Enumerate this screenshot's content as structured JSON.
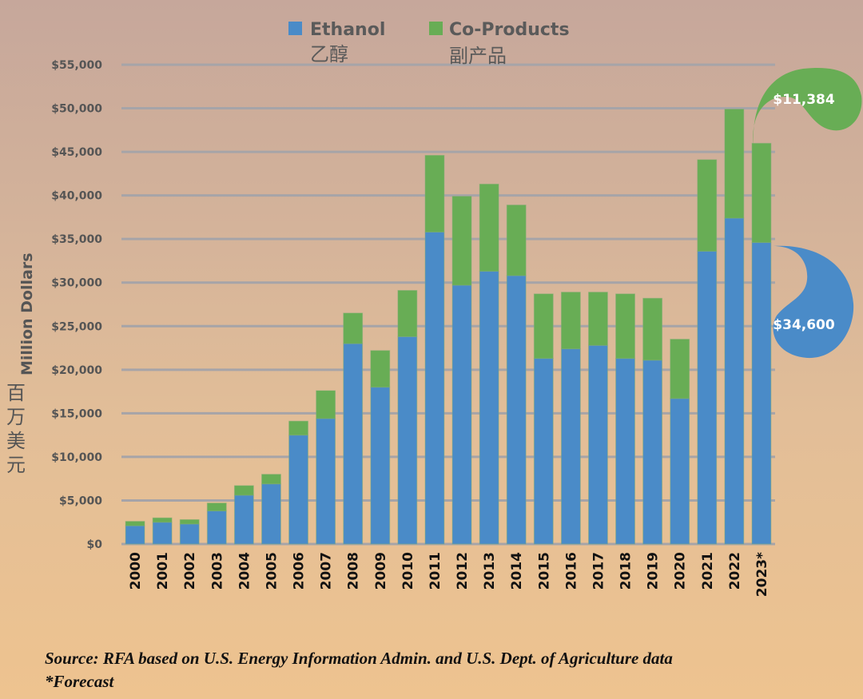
{
  "chart_data": {
    "type": "bar",
    "stacked": true,
    "title": "",
    "xlabel": "",
    "ylabel": "Million Dollars",
    "ylabel_zh": "百万美元",
    "ylim": [
      0,
      55000
    ],
    "yticks": [
      0,
      5000,
      10000,
      15000,
      20000,
      25000,
      30000,
      35000,
      40000,
      45000,
      50000,
      55000
    ],
    "ytick_labels": [
      "$0",
      "$5,000",
      "$10,000",
      "$15,000",
      "$20,000",
      "$25,000",
      "$30,000",
      "$35,000",
      "$40,000",
      "$45,000",
      "$50,000",
      "$55,000"
    ],
    "grid": true,
    "legend_placement": "top-center",
    "categories": [
      "2000",
      "2001",
      "2002",
      "2003",
      "2004",
      "2005",
      "2006",
      "2007",
      "2008",
      "2009",
      "2010",
      "2011",
      "2012",
      "2013",
      "2014",
      "2015",
      "2016",
      "2017",
      "2018",
      "2019",
      "2020",
      "2021",
      "2022",
      "2023*"
    ],
    "series": [
      {
        "name": "Ethanol",
        "name_zh": "乙醇",
        "color": "#4a8bc8",
        "values": [
          2100,
          2500,
          2300,
          3800,
          5600,
          6900,
          12500,
          14400,
          23000,
          18000,
          23800,
          35800,
          29700,
          31300,
          30800,
          21300,
          22400,
          22800,
          21300,
          21100,
          16700,
          33600,
          37400,
          34600
        ]
      },
      {
        "name": "Co-Products",
        "name_zh": "副产品",
        "color": "#68ad55",
        "values": [
          500,
          500,
          500,
          900,
          1100,
          1100,
          1600,
          3200,
          3500,
          4200,
          5300,
          8800,
          10200,
          10000,
          8100,
          7400,
          6500,
          6100,
          7400,
          7100,
          6800,
          10500,
          12500,
          11384
        ]
      }
    ],
    "annotations": [
      {
        "text": "$11,384",
        "category": "2023*",
        "series": "Co-Products"
      },
      {
        "text": "$34,600",
        "category": "2023*",
        "series": "Ethanol"
      }
    ],
    "source_note": "Source: RFA based on U.S. Energy Information Admin. and U.S. Dept. of Agriculture data",
    "footnote": "*Forecast"
  }
}
